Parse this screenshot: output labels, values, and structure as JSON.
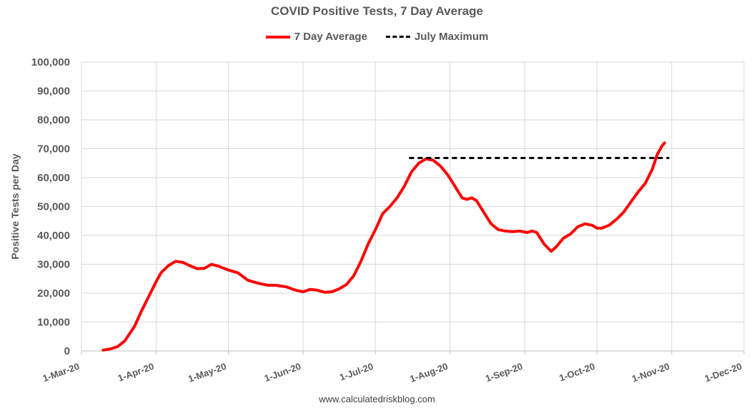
{
  "chart_data": {
    "type": "line",
    "title": "COVID Positive Tests, 7 Day Average",
    "xlabel": "",
    "ylabel": "Positive Tests per Day",
    "ylim": [
      0,
      100000
    ],
    "y_ticks": [
      "0",
      "10,000",
      "20,000",
      "30,000",
      "40,000",
      "50,000",
      "60,000",
      "70,000",
      "80,000",
      "90,000",
      "100,000"
    ],
    "x_ticks": [
      "1-Mar-20",
      "1-Apr-20",
      "1-May-20",
      "1-Jun-20",
      "1-Jul-20",
      "1-Aug-20",
      "1-Sep-20",
      "1-Oct-20",
      "1-Nov-20",
      "1-Dec-20"
    ],
    "xlim": [
      "2020-03-01",
      "2020-12-01"
    ],
    "grid": "vertical and horizontal",
    "legend_position": "top",
    "series": [
      {
        "name": "7 Day Average",
        "color": "#ff0000",
        "style": "solid",
        "points": [
          [
            "2020-03-10",
            300
          ],
          [
            "2020-03-13",
            700
          ],
          [
            "2020-03-16",
            1500
          ],
          [
            "2020-03-19",
            3500
          ],
          [
            "2020-03-21",
            6000
          ],
          [
            "2020-03-23",
            8500
          ],
          [
            "2020-03-26",
            14000
          ],
          [
            "2020-03-29",
            19000
          ],
          [
            "2020-04-01",
            24000
          ],
          [
            "2020-04-03",
            27000
          ],
          [
            "2020-04-06",
            29500
          ],
          [
            "2020-04-09",
            31000
          ],
          [
            "2020-04-12",
            30700
          ],
          [
            "2020-04-15",
            29500
          ],
          [
            "2020-04-18",
            28500
          ],
          [
            "2020-04-21",
            28600
          ],
          [
            "2020-04-24",
            30000
          ],
          [
            "2020-04-27",
            29300
          ],
          [
            "2020-05-01",
            28000
          ],
          [
            "2020-05-05",
            27000
          ],
          [
            "2020-05-09",
            24500
          ],
          [
            "2020-05-13",
            23500
          ],
          [
            "2020-05-17",
            22800
          ],
          [
            "2020-05-21",
            22700
          ],
          [
            "2020-05-25",
            22200
          ],
          [
            "2020-05-29",
            21000
          ],
          [
            "2020-06-01",
            20500
          ],
          [
            "2020-06-04",
            21300
          ],
          [
            "2020-06-07",
            21000
          ],
          [
            "2020-06-10",
            20300
          ],
          [
            "2020-06-13",
            20500
          ],
          [
            "2020-06-16",
            21500
          ],
          [
            "2020-06-19",
            23000
          ],
          [
            "2020-06-22",
            26000
          ],
          [
            "2020-06-25",
            31000
          ],
          [
            "2020-06-28",
            37000
          ],
          [
            "2020-07-01",
            42000
          ],
          [
            "2020-07-04",
            47500
          ],
          [
            "2020-07-07",
            50000
          ],
          [
            "2020-07-10",
            53000
          ],
          [
            "2020-07-13",
            57000
          ],
          [
            "2020-07-16",
            62000
          ],
          [
            "2020-07-19",
            65000
          ],
          [
            "2020-07-22",
            66500
          ],
          [
            "2020-07-25",
            66000
          ],
          [
            "2020-07-28",
            64000
          ],
          [
            "2020-07-31",
            61000
          ],
          [
            "2020-08-03",
            57000
          ],
          [
            "2020-08-06",
            53000
          ],
          [
            "2020-08-08",
            52500
          ],
          [
            "2020-08-10",
            53000
          ],
          [
            "2020-08-12",
            52000
          ],
          [
            "2020-08-15",
            48000
          ],
          [
            "2020-08-18",
            44000
          ],
          [
            "2020-08-21",
            42000
          ],
          [
            "2020-08-24",
            41500
          ],
          [
            "2020-08-27",
            41300
          ],
          [
            "2020-08-30",
            41500
          ],
          [
            "2020-09-02",
            41000
          ],
          [
            "2020-09-04",
            41500
          ],
          [
            "2020-09-06",
            41000
          ],
          [
            "2020-09-09",
            37000
          ],
          [
            "2020-09-12",
            34500
          ],
          [
            "2020-09-14",
            36000
          ],
          [
            "2020-09-17",
            39000
          ],
          [
            "2020-09-20",
            40500
          ],
          [
            "2020-09-23",
            43000
          ],
          [
            "2020-09-26",
            44000
          ],
          [
            "2020-09-29",
            43500
          ],
          [
            "2020-10-01",
            42500
          ],
          [
            "2020-10-03",
            42500
          ],
          [
            "2020-10-06",
            43500
          ],
          [
            "2020-10-09",
            45500
          ],
          [
            "2020-10-12",
            48000
          ],
          [
            "2020-10-15",
            51500
          ],
          [
            "2020-10-18",
            55000
          ],
          [
            "2020-10-21",
            58000
          ],
          [
            "2020-10-24",
            63000
          ],
          [
            "2020-10-26",
            68000
          ],
          [
            "2020-10-28",
            71000
          ],
          [
            "2020-10-29",
            72000
          ]
        ]
      },
      {
        "name": "July Maximum",
        "color": "#000000",
        "style": "dashed",
        "points": [
          [
            "2020-07-15",
            66800
          ],
          [
            "2020-10-31",
            66800
          ]
        ]
      }
    ]
  },
  "footer": "www.calculatedriskblog.com"
}
